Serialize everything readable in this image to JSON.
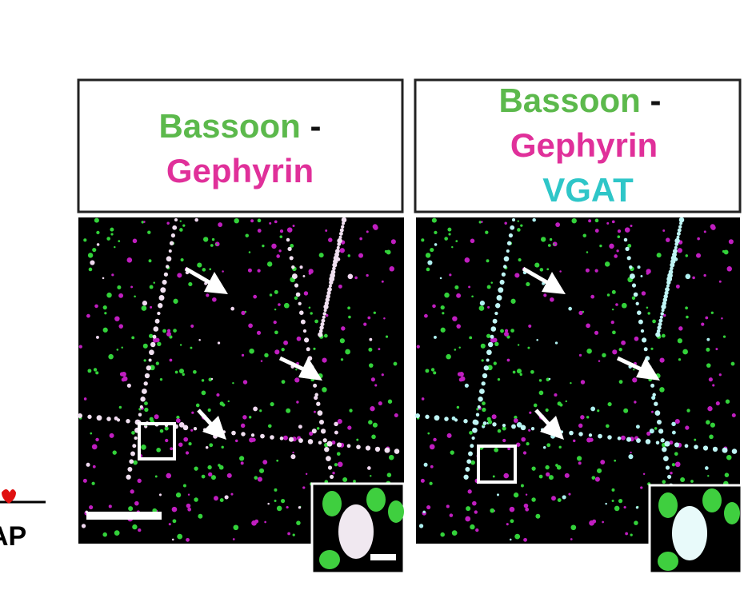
{
  "panels": [
    {
      "title": {
        "word1": "Bassoon",
        "dash": "-",
        "word2": "Gephyrin"
      }
    },
    {
      "title": {
        "word1": "Bassoon",
        "dash": "-",
        "word2": "Gephyrin",
        "word3": "VGAT"
      }
    }
  ],
  "side_label": "AP"
}
